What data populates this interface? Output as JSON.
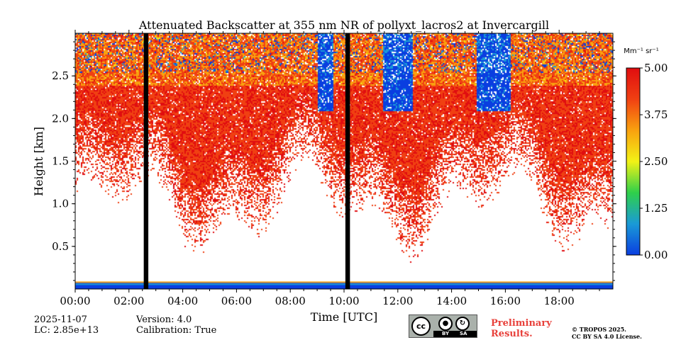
{
  "chart_data": {
    "type": "heatmap",
    "title": "Attenuated Backscatter at 355 nm NR of pollyxt_lacros2 at Invercargill",
    "xlabel": "Time [UTC]",
    "ylabel": "Height [km]",
    "xlim_hours": [
      0,
      20
    ],
    "ylim_km": [
      0,
      3.0
    ],
    "x_ticks": [
      {
        "h": 0,
        "label": "00:00"
      },
      {
        "h": 2,
        "label": "02:00"
      },
      {
        "h": 4,
        "label": "04:00"
      },
      {
        "h": 6,
        "label": "06:00"
      },
      {
        "h": 8,
        "label": "08:00"
      },
      {
        "h": 10,
        "label": "10:00"
      },
      {
        "h": 12,
        "label": "12:00"
      },
      {
        "h": 14,
        "label": "14:00"
      },
      {
        "h": 16,
        "label": "16:00"
      },
      {
        "h": 18,
        "label": "18:00"
      }
    ],
    "y_ticks": [
      {
        "v": 0.5,
        "label": "0.5"
      },
      {
        "v": 1.0,
        "label": "1.0"
      },
      {
        "v": 1.5,
        "label": "1.5"
      },
      {
        "v": 2.0,
        "label": "2.0"
      },
      {
        "v": 2.5,
        "label": "2.5"
      }
    ],
    "colorbar": {
      "unit": "Mm⁻¹ sr⁻¹",
      "min": 0.0,
      "max": 5.0,
      "ticks": [
        {
          "v": 0.0,
          "label": "0.00"
        },
        {
          "v": 1.25,
          "label": "1.25"
        },
        {
          "v": 2.5,
          "label": "2.50"
        },
        {
          "v": 3.75,
          "label": "3.75"
        },
        {
          "v": 5.0,
          "label": "5.00"
        }
      ],
      "colors": [
        "#0a3ee0",
        "#1a9ad6",
        "#2fd04a",
        "#f2f216",
        "#f9a10f",
        "#f04012",
        "#e00d10"
      ]
    },
    "no_data_gaps_hours": [
      [
        2.55,
        2.72
      ],
      [
        10.05,
        10.22
      ]
    ],
    "clear_sky_patches_hours": [
      [
        11.45,
        12.55
      ],
      [
        14.9,
        16.2
      ],
      [
        9.0,
        9.6
      ]
    ],
    "surface_band_km": [
      0.0,
      0.08
    ]
  },
  "info": {
    "date": "2025-11-07",
    "lc": "LC: 2.85e+13",
    "version": "Version: 4.0",
    "calibration": "Calibration: True"
  },
  "license": {
    "cc": "cc",
    "by": "BY",
    "sa": "SA",
    "preliminary_line1": "Preliminary",
    "preliminary_line2": "Results.",
    "copyright_line1": "© TROPOS 2025.",
    "copyright_line2": "CC BY SA 4.0 License."
  }
}
